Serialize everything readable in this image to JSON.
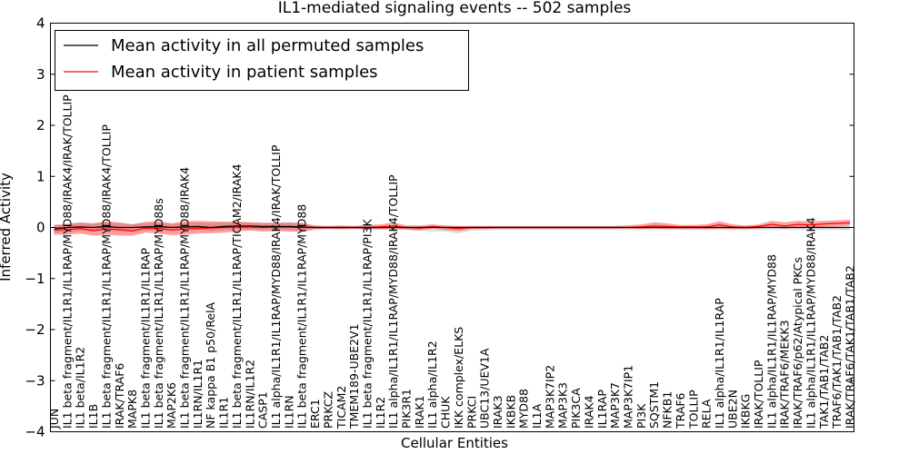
{
  "chart_data": {
    "type": "line",
    "title": "IL1-mediated signaling events -- 502 samples",
    "xlabel": "Cellular Entities",
    "ylabel": "Inferred Activity",
    "ylim": [
      -4,
      4
    ],
    "yticks": [
      "−4",
      "−3",
      "−2",
      "−1",
      "0",
      "1",
      "2",
      "3",
      "4"
    ],
    "legend_position": "top-left",
    "legend": [
      {
        "label": "Mean activity in all permuted samples",
        "color": "#000000"
      },
      {
        "label": "Mean activity in patient samples",
        "color": "#ff0000"
      }
    ],
    "categories": [
      "JUN",
      "IL1 beta fragment/IL1R1/IL1RAP/MYD88/IRAK4/IRAK/TOLLIP",
      "IL1 beta/IL1R2",
      "IL1B",
      "IL1 beta fragment/IL1R1/IL1RAP/MYD88/IRAK4/TOLLIP",
      "IRAK/TRAF6",
      "MAPK8",
      "IL1 beta fragment/IL1R1/IL1RAP",
      "IL1 beta fragment/IL1R1/IL1RAP/MYD88s",
      "MAP2K6",
      "IL1 beta fragment/IL1R1/IL1RAP/MYD88/IRAK4",
      "IL1RN/IL1R1",
      "NF kappa B1 p50/RelA",
      "IL1R1",
      "IL1 beta fragment/IL1R1/IL1RAP/TICAM2/IRAK4",
      "IL1RN/IL1R2",
      "CASP1",
      "IL1 alpha/IL1R1/IL1RAP/MYD88/IRAK4/IRAK/TOLLIP",
      "IL1RN",
      "IL1 beta fragment/IL1R1/IL1RAP/MYD88",
      "ERC1",
      "PRKCZ",
      "TICAM2",
      "TMEM189-UBE2V1",
      "IL1 beta fragment/IL1R1/IL1RAP/PI3K",
      "IL1R2",
      "IL1 alpha/IL1R1/IL1RAP/MYD88/IRAK4/TOLLIP",
      "PIK3R1",
      "IRAK1",
      "IL1 alpha/IL1R2",
      "CHUK",
      "IKK complex/ELKS",
      "PRKCI",
      "UBC13/UEV1A",
      "IRAK3",
      "IKBKB",
      "MYD88",
      "IL1A",
      "MAP3K7IP2",
      "MAP3K3",
      "PIK3CA",
      "IRAK4",
      "IL1RAP",
      "MAP3K7",
      "MAP3K7IP1",
      "PI3K",
      "SQSTM1",
      "NFKB1",
      "TRAF6",
      "TOLLIP",
      "RELA",
      "IL1 alpha/IL1R1/IL1RAP",
      "UBE2N",
      "IKBKG",
      "IRAK/TOLLIP",
      "IL1 alpha/IL1R1/IL1RAP/MYD88",
      "IRAK/TRAF6/MEKK3",
      "IRAK/TRAF6/p62/Atypical PKCs",
      "IL1 alpha/IL1R1/IL1RAP/MYD88/IRAK4",
      "TAK1/TAB1/TAB2",
      "TRAF6/TAK1/TAB1/TAB2",
      "IRAK/TRAF6/TAK1/TAB1/TAB2"
    ],
    "series": [
      {
        "name": "Mean activity in all permuted samples",
        "color": "#000000",
        "values": [
          -0.03,
          0.0,
          0.01,
          0.0,
          0.02,
          0.0,
          0.0,
          0.01,
          0.02,
          0.0,
          0.01,
          0.02,
          0.0,
          0.02,
          0.03,
          0.03,
          0.02,
          0.02,
          0.02,
          0.01,
          0.0,
          0.0,
          0.0,
          0.0,
          0.0,
          0.0,
          0.0,
          0.0,
          0.0,
          0.0,
          0.0,
          0.0,
          0.0,
          0.0,
          0.0,
          0.0,
          0.0,
          0.0,
          0.0,
          0.0,
          0.0,
          0.0,
          0.0,
          0.0,
          0.0,
          0.0,
          0.0,
          0.0,
          0.0,
          0.0,
          0.0,
          0.0,
          0.0,
          0.0,
          0.0,
          0.0,
          0.0,
          0.0,
          0.0,
          0.0,
          0.0,
          0.0
        ]
      },
      {
        "name": "Mean activity in patient samples",
        "color": "#ff0000",
        "values": [
          -0.05,
          -0.04,
          -0.02,
          -0.06,
          -0.03,
          -0.04,
          -0.07,
          -0.01,
          -0.02,
          -0.05,
          -0.03,
          -0.02,
          -0.01,
          0.0,
          0.01,
          0.02,
          0.0,
          0.01,
          0.01,
          0.0,
          0.0,
          0.0,
          0.0,
          0.0,
          0.0,
          0.01,
          0.03,
          0.0,
          -0.01,
          0.02,
          0.0,
          -0.02,
          0.0,
          0.0,
          0.0,
          0.0,
          0.0,
          0.0,
          0.0,
          0.0,
          0.0,
          0.0,
          0.0,
          0.0,
          0.0,
          0.01,
          0.03,
          0.02,
          0.01,
          0.01,
          0.01,
          0.05,
          0.01,
          0.0,
          0.02,
          0.06,
          0.03,
          0.06,
          0.05,
          0.07,
          0.08,
          0.09
        ]
      }
    ],
    "patient_band": {
      "upper": [
        0.05,
        0.07,
        0.1,
        0.08,
        0.12,
        0.1,
        0.06,
        0.11,
        0.12,
        0.08,
        0.12,
        0.13,
        0.12,
        0.11,
        0.11,
        0.1,
        0.09,
        0.09,
        0.1,
        0.09,
        0.04,
        0.03,
        0.04,
        0.03,
        0.05,
        0.06,
        0.1,
        0.04,
        0.04,
        0.06,
        0.04,
        0.03,
        0.03,
        0.03,
        0.03,
        0.03,
        0.03,
        0.03,
        0.03,
        0.03,
        0.03,
        0.03,
        0.03,
        0.03,
        0.04,
        0.06,
        0.1,
        0.08,
        0.05,
        0.05,
        0.06,
        0.12,
        0.06,
        0.04,
        0.06,
        0.13,
        0.1,
        0.13,
        0.12,
        0.13,
        0.14,
        0.15
      ],
      "lower": [
        -0.14,
        -0.14,
        -0.12,
        -0.16,
        -0.14,
        -0.16,
        -0.16,
        -0.1,
        -0.12,
        -0.15,
        -0.14,
        -0.12,
        -0.11,
        -0.1,
        -0.08,
        -0.06,
        -0.08,
        -0.07,
        -0.08,
        -0.09,
        -0.04,
        -0.03,
        -0.04,
        -0.03,
        -0.04,
        -0.04,
        -0.03,
        -0.04,
        -0.06,
        -0.02,
        -0.05,
        -0.07,
        -0.03,
        -0.03,
        -0.02,
        -0.02,
        -0.02,
        -0.02,
        -0.02,
        -0.02,
        -0.02,
        -0.02,
        -0.02,
        -0.02,
        -0.02,
        -0.03,
        -0.02,
        -0.03,
        -0.03,
        -0.03,
        -0.03,
        -0.02,
        -0.03,
        -0.03,
        -0.02,
        0.0,
        -0.02,
        0.0,
        0.0,
        0.01,
        0.02,
        0.03
      ]
    },
    "permuted_band": {
      "upper": [
        0.05,
        0.07,
        0.09,
        0.08,
        0.1,
        0.08,
        0.07,
        0.08,
        0.09,
        0.07,
        0.09,
        0.1,
        0.09,
        0.1,
        0.11,
        0.1,
        0.09,
        0.09,
        0.09,
        0.08,
        0.03,
        0.02,
        0.02,
        0.02,
        0.02,
        0.02,
        0.02,
        0.02,
        0.02,
        0.02,
        0.02,
        0.02,
        0.02,
        0.02,
        0.02,
        0.02,
        0.02,
        0.02,
        0.02,
        0.02,
        0.02,
        0.02,
        0.02,
        0.02,
        0.02,
        0.02,
        0.02,
        0.02,
        0.02,
        0.02,
        0.02,
        0.02,
        0.02,
        0.02,
        0.02,
        0.02,
        0.02,
        0.02,
        0.02,
        0.02,
        0.02,
        0.02
      ],
      "lower": [
        -0.11,
        -0.08,
        -0.07,
        -0.08,
        -0.06,
        -0.08,
        -0.09,
        -0.06,
        -0.05,
        -0.07,
        -0.06,
        -0.05,
        -0.07,
        -0.05,
        -0.04,
        -0.04,
        -0.05,
        -0.05,
        -0.05,
        -0.06,
        -0.03,
        -0.03,
        -0.03,
        -0.03,
        -0.03,
        -0.04,
        -0.04,
        -0.05,
        -0.06,
        -0.08,
        -0.08,
        -0.12,
        -0.06,
        -0.06,
        -0.05,
        -0.05,
        -0.05,
        -0.05,
        -0.05,
        -0.05,
        -0.05,
        -0.05,
        -0.05,
        -0.05,
        -0.05,
        -0.05,
        -0.05,
        -0.05,
        -0.05,
        -0.05,
        -0.05,
        -0.05,
        -0.05,
        -0.05,
        -0.05,
        -0.05,
        -0.05,
        -0.05,
        -0.05,
        -0.05,
        -0.05,
        -0.05
      ]
    }
  }
}
